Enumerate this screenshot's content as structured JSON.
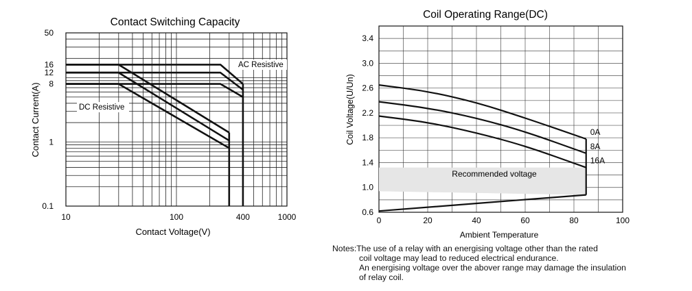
{
  "chart_data": [
    {
      "type": "line",
      "scale": "log-log",
      "title": "Contact Switching Capacity",
      "xlabel": "Contact Voltage(V)",
      "ylabel": "Contact Current(A)",
      "xlim": [
        10,
        1000
      ],
      "ylim": [
        0.1,
        50
      ],
      "x_tick_labels": [
        "10",
        "100",
        "400",
        "1000"
      ],
      "x_tick_values": [
        10,
        100,
        400,
        1000
      ],
      "y_tick_labels": [
        "0.1",
        "1",
        "8",
        "12",
        "16",
        "50"
      ],
      "y_tick_values": [
        0.1,
        1,
        8,
        12,
        16,
        50
      ],
      "grid": true,
      "annotations": [
        "AC Resistive",
        "DC Resistive"
      ],
      "series": [
        {
          "name": "AC Resistive",
          "points": [
            [
              10,
              16
            ],
            [
              250,
              16
            ],
            [
              400,
              8
            ]
          ]
        },
        {
          "name": "AC Resistive",
          "points": [
            [
              10,
              12
            ],
            [
              250,
              12
            ],
            [
              400,
              6.5
            ]
          ]
        },
        {
          "name": "AC Resistive",
          "points": [
            [
              10,
              8
            ],
            [
              250,
              8
            ],
            [
              400,
              5
            ]
          ]
        },
        {
          "name": "DC Resistive",
          "points": [
            [
              10,
              16
            ],
            [
              30,
              16
            ],
            [
              300,
              1.4
            ]
          ]
        },
        {
          "name": "DC Resistive",
          "points": [
            [
              10,
              12
            ],
            [
              30,
              12
            ],
            [
              300,
              1.05
            ]
          ]
        },
        {
          "name": "DC Resistive",
          "points": [
            [
              10,
              8
            ],
            [
              30,
              8
            ],
            [
              300,
              0.8
            ]
          ]
        },
        {
          "name": "DC Resistive",
          "points": [
            [
              300,
              1.4
            ],
            [
              300,
              0.1
            ]
          ]
        },
        {
          "name": "AC Resistive",
          "points": [
            [
              400,
              8
            ],
            [
              400,
              0.1
            ]
          ]
        }
      ]
    },
    {
      "type": "line",
      "title": "Coil Operating Range(DC)",
      "xlabel": "Ambient Temperature",
      "ylabel": "Coil Voltage(U/Un)",
      "xlim": [
        0,
        100
      ],
      "ylim": [
        0.6,
        3.6
      ],
      "x_ticks": [
        0,
        20,
        40,
        60,
        80,
        100
      ],
      "y_ticks": [
        0.6,
        1.0,
        1.4,
        1.8,
        2.2,
        2.6,
        3.0,
        3.4
      ],
      "grid": true,
      "region_label": "Recommended voltage",
      "series": [
        {
          "name": "0A",
          "x": [
            0,
            20,
            40,
            60,
            85
          ],
          "y": [
            2.65,
            2.55,
            2.37,
            2.12,
            1.78
          ]
        },
        {
          "name": "8A",
          "x": [
            0,
            20,
            40,
            60,
            85
          ],
          "y": [
            2.38,
            2.28,
            2.12,
            1.9,
            1.55
          ]
        },
        {
          "name": "16A",
          "x": [
            0,
            20,
            40,
            60,
            85
          ],
          "y": [
            2.15,
            2.05,
            1.88,
            1.67,
            1.32
          ]
        },
        {
          "name": "",
          "x": [
            0,
            85
          ],
          "y": [
            0.62,
            0.88
          ]
        }
      ],
      "recommended_region": {
        "x": [
          0,
          85
        ],
        "y_top": 1.32,
        "y_bottom": [
          0.94,
          0.88
        ]
      }
    }
  ],
  "notes": {
    "line1": "Notes:The use of a relay with an energising voltage other than the rated",
    "line2": "coil voltage may lead to reduced electrical endurance.",
    "line3": "An energising voltage over the abover range may damage the insulation",
    "line4": "of relay coil."
  }
}
